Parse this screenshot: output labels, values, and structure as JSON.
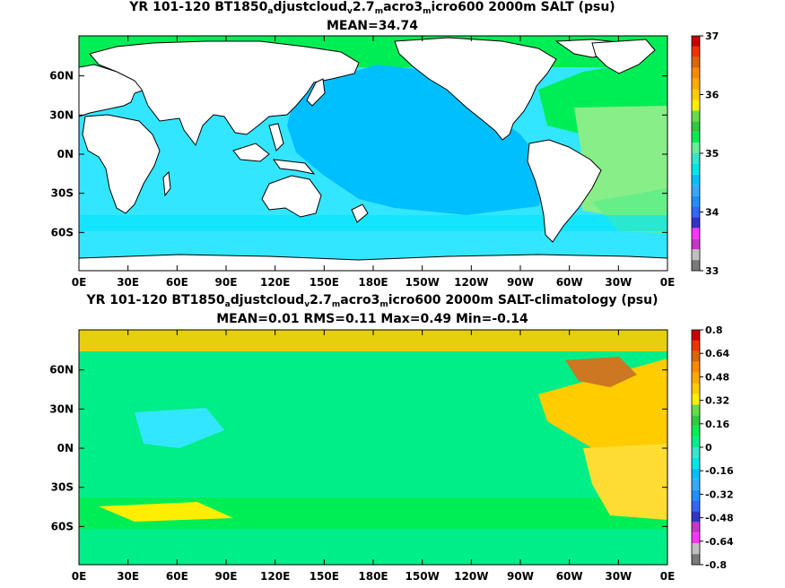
{
  "panel1": {
    "title_line1": {
      "pre": "YR 101-120 BT1850",
      "s1": "a",
      "m1": "djustcloud",
      "s2": "v",
      "m2": "2.7",
      "s3": "m",
      "m3": "acro3",
      "s4": "m",
      "post": "icro600 2000m SALT (psu)"
    },
    "title_line2": "MEAN=34.74",
    "lon_ticks": [
      "0E",
      "30E",
      "60E",
      "90E",
      "120E",
      "150E",
      "180E",
      "150W",
      "120W",
      "90W",
      "60W",
      "30W",
      "0E"
    ],
    "lat_ticks": [
      "60N",
      "30N",
      "0N",
      "30S",
      "60S"
    ],
    "colorbar_labels": [
      "37",
      "36",
      "35",
      "34",
      "33"
    ],
    "colorbar_colors": [
      "#7a7a7a",
      "#c0c0c0",
      "#cc33cc",
      "#ff33ff",
      "#3333cc",
      "#3366ff",
      "#1e90ff",
      "#33aaff",
      "#00bfff",
      "#00e5e5",
      "#33e6cc",
      "#66ee99",
      "#00ee55",
      "#2ecc40",
      "#66dd44",
      "#ffee00",
      "#ffcc00",
      "#ffaa00",
      "#ff8800",
      "#dd6600",
      "#ee3300",
      "#cc0000"
    ],
    "field_colors": {
      "pacific": "#00bfff",
      "indian": "#33e6ff",
      "southern": "#33e6ff",
      "atlantic_north": "#00ee55",
      "atlantic_mid": "#88ee88",
      "atlantic_south": "#66ee88",
      "arctic": "#00ee55",
      "land": "#ffffff"
    }
  },
  "panel2": {
    "title_line1": {
      "pre": "YR 101-120 BT1850",
      "s1": "a",
      "m1": "djustcloud",
      "s2": "v",
      "m2": "2.7",
      "s3": "m",
      "m3": "acro3",
      "s4": "m",
      "post": "icro600 2000m SALT-climatology (psu)"
    },
    "title_line2": "MEAN=0.01   RMS=0.11   Max=0.49   Min=-0.14",
    "lon_ticks": [
      "0E",
      "30E",
      "60E",
      "90E",
      "120E",
      "150E",
      "180E",
      "150W",
      "120W",
      "90W",
      "60W",
      "30W",
      "0E"
    ],
    "lat_ticks": [
      "60N",
      "30N",
      "0N",
      "30S",
      "60S"
    ],
    "colorbar_labels": [
      "0.8",
      "0.64",
      "0.48",
      "0.32",
      "0.16",
      "0",
      "-0.16",
      "-0.32",
      "-0.48",
      "-0.64",
      "-0.8"
    ],
    "colorbar_colors": [
      "#7a7a7a",
      "#c0c0c0",
      "#ff33ff",
      "#cc33cc",
      "#3333cc",
      "#3366ff",
      "#1e90ff",
      "#33aaff",
      "#00bfff",
      "#00e5e5",
      "#33e6cc",
      "#00ee88",
      "#00ee55",
      "#2ecc40",
      "#66dd44",
      "#ffee00",
      "#ffcc00",
      "#ffaa00",
      "#ff8800",
      "#dd6600",
      "#ee3300",
      "#cc0000"
    ],
    "field_colors": {
      "ocean": "#00ee88",
      "indian_west": "#33e6ff",
      "atlantic_north": "#ffcc00",
      "atlantic_labrador": "#cc7722",
      "atlantic_south": "#ffdd33",
      "southern_band": "#00ee55",
      "southern_yellow": "#ffee00",
      "arctic": "#ffcc00",
      "land": "#ffffff"
    }
  }
}
